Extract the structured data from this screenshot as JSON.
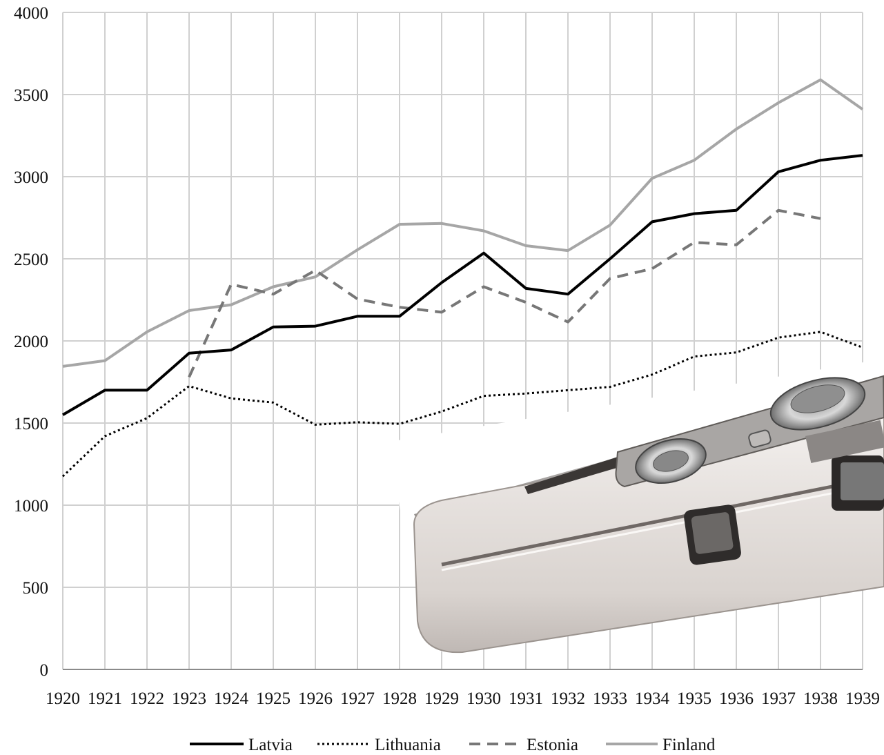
{
  "chart_data": {
    "type": "line",
    "title": "",
    "xlabel": "",
    "ylabel": "",
    "x": [
      "1920",
      "1921",
      "1922",
      "1923",
      "1924",
      "1925",
      "1926",
      "1927",
      "1928",
      "1929",
      "1930",
      "1931",
      "1932",
      "1933",
      "1934",
      "1935",
      "1936",
      "1937",
      "1938",
      "1939"
    ],
    "ylim": [
      0,
      4000
    ],
    "yticks": [
      "0",
      "500",
      "1000",
      "1500",
      "2000",
      "2500",
      "3000",
      "3500",
      "4000"
    ],
    "grid": true,
    "legend_position": "bottom",
    "series": [
      {
        "name": "Latvia",
        "color": "#000000",
        "style": "solid",
        "values": [
          1550,
          1700,
          1700,
          1925,
          1945,
          2085,
          2090,
          2150,
          2150,
          2355,
          2535,
          2320,
          2285,
          2500,
          2725,
          2775,
          2795,
          3030,
          3100,
          3130
        ]
      },
      {
        "name": "Lithuania",
        "color": "#000000",
        "style": "dotted",
        "values": [
          1175,
          1420,
          1530,
          1725,
          1650,
          1625,
          1490,
          1505,
          1495,
          1570,
          1665,
          1680,
          1700,
          1720,
          1795,
          1905,
          1930,
          2020,
          2055,
          1960
        ]
      },
      {
        "name": "Estonia",
        "color": "#777777",
        "style": "dashed",
        "values": [
          null,
          null,
          null,
          1780,
          2345,
          2285,
          2430,
          2255,
          2205,
          2175,
          2330,
          2235,
          2115,
          2380,
          2440,
          2600,
          2585,
          2795,
          2745,
          null
        ]
      },
      {
        "name": "Finland",
        "color": "#a6a6a6",
        "style": "solid",
        "values": [
          1845,
          1880,
          2055,
          2185,
          2220,
          2330,
          2390,
          2555,
          2710,
          2715,
          2670,
          2580,
          2550,
          2705,
          2990,
          3100,
          3290,
          3450,
          3590,
          3410
        ]
      }
    ]
  },
  "overlay_image": {
    "description_icon": "compact-camera-photo"
  }
}
